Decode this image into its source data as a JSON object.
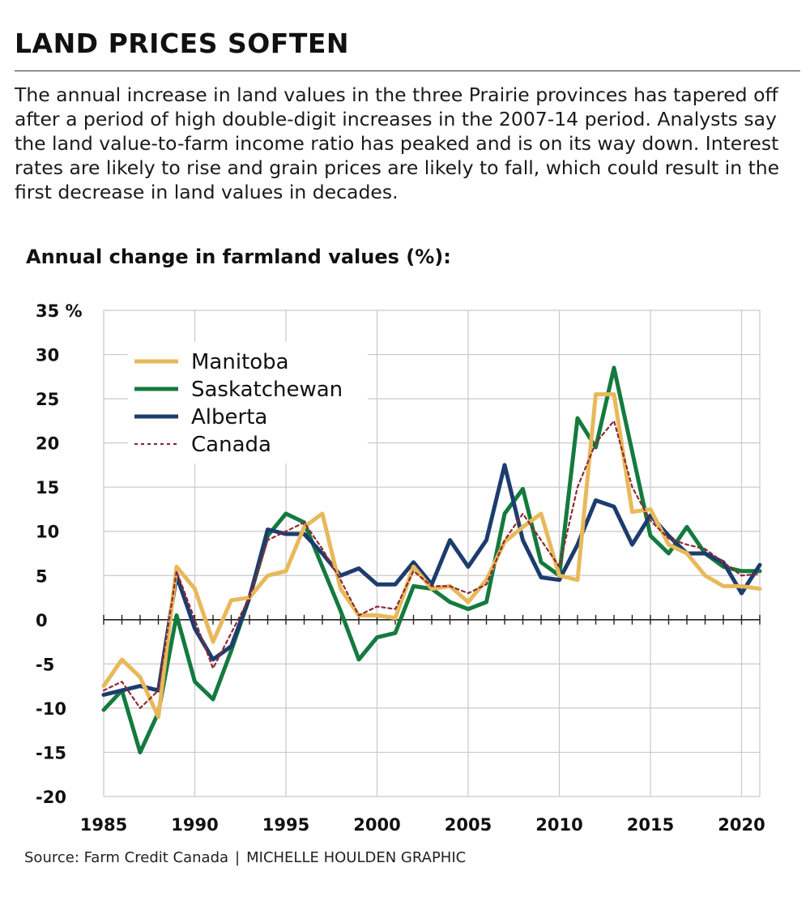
{
  "headline": "LAND PRICES SOFTEN",
  "dek": "The annual increase in land values in the three Prairie provinces has tapered off after a period of high double-digit increases in the 2007-14 period. Analysts say the land value-to-farm income ratio has peaked and is on its way down. Interest rates are likely to rise and grain prices are likely to fall, which could result in the first decrease in land values in decades.",
  "footer": {
    "source": "Source: Farm Credit Canada",
    "separator": "|",
    "credit": "MICHELLE HOULDEN GRAPHIC"
  },
  "colors": {
    "Manitoba": "#e8b95a",
    "Saskatchewan": "#147a3e",
    "Alberta": "#1d3c6e",
    "Canada": "#8c2a35"
  },
  "chart_data": {
    "type": "line",
    "title": "Annual change in farmland values (%):",
    "xlabel": "",
    "ylabel": "",
    "xlim": [
      1985,
      2021
    ],
    "ylim": [
      -20,
      35
    ],
    "x": [
      1985,
      1986,
      1987,
      1988,
      1989,
      1990,
      1991,
      1992,
      1993,
      1994,
      1995,
      1996,
      1997,
      1998,
      1999,
      2000,
      2001,
      2002,
      2003,
      2004,
      2005,
      2006,
      2007,
      2008,
      2009,
      2010,
      2011,
      2012,
      2013,
      2014,
      2015,
      2016,
      2017,
      2018,
      2019,
      2020,
      2021
    ],
    "x_ticks": [
      "1985",
      "1990",
      "1995",
      "2000",
      "2005",
      "2010",
      "2015",
      "2020"
    ],
    "x_tick_values": [
      1985,
      1990,
      1995,
      2000,
      2005,
      2010,
      2015,
      2020
    ],
    "y_tick_values": [
      -20,
      -15,
      -10,
      -5,
      0,
      5,
      10,
      15,
      20,
      25,
      30,
      35
    ],
    "y_ticks": [
      "-20",
      "-15",
      "-10",
      "-5",
      "0",
      "5",
      "10",
      "15",
      "20",
      "25",
      "30",
      "35 %"
    ],
    "legend": {
      "position": "top-left",
      "entries": [
        "Manitoba",
        "Saskatchewan",
        "Alberta",
        "Canada"
      ]
    },
    "series": [
      {
        "name": "Manitoba",
        "style": "solid",
        "values": [
          -7.5,
          -4.5,
          -6.5,
          -11,
          6,
          3.5,
          -2.5,
          2.2,
          2.5,
          5,
          5.5,
          10.5,
          12,
          3.5,
          0.5,
          0.5,
          0.2,
          6,
          3.5,
          3.8,
          2,
          4.5,
          8.8,
          10.5,
          12,
          5,
          4.5,
          25.5,
          25.5,
          12.2,
          12.5,
          8.5,
          7.5,
          5,
          3.8,
          3.8,
          3.5
        ]
      },
      {
        "name": "Saskatchewan",
        "style": "solid",
        "values": [
          -10.2,
          -8,
          -15,
          -10.5,
          0.5,
          -7,
          -9,
          -3.5,
          2.5,
          9.5,
          12,
          11,
          6,
          1,
          -4.5,
          -2,
          -1.5,
          3.8,
          3.5,
          2,
          1.2,
          2,
          12,
          14.8,
          6.5,
          5,
          22.8,
          19.5,
          28.5,
          19,
          9.5,
          7.5,
          10.5,
          7.5,
          6,
          5.5,
          5.5
        ]
      },
      {
        "name": "Alberta",
        "style": "solid",
        "values": [
          -8.5,
          -8,
          -7.5,
          -8,
          5,
          -1,
          -4.5,
          -3,
          2.5,
          10.2,
          9.7,
          9.7,
          7.5,
          5,
          5.8,
          4,
          4,
          6.5,
          4,
          9,
          6,
          9,
          17.5,
          9,
          4.8,
          4.5,
          8.5,
          13.5,
          12.8,
          8.5,
          11.8,
          9.5,
          7.5,
          7.5,
          6.5,
          3,
          6.2
        ]
      },
      {
        "name": "Canada",
        "style": "dashed",
        "values": [
          -8,
          -7,
          -10,
          -8,
          5.5,
          0,
          -5.5,
          -1.5,
          2.5,
          9,
          10,
          11,
          8,
          4.5,
          0.5,
          1.5,
          1.2,
          5.5,
          3.8,
          3.8,
          3,
          4,
          9,
          12,
          9,
          6,
          15,
          20,
          22.5,
          15,
          11.2,
          9.2,
          8.5,
          8,
          6.5,
          5,
          5.2
        ]
      }
    ]
  }
}
